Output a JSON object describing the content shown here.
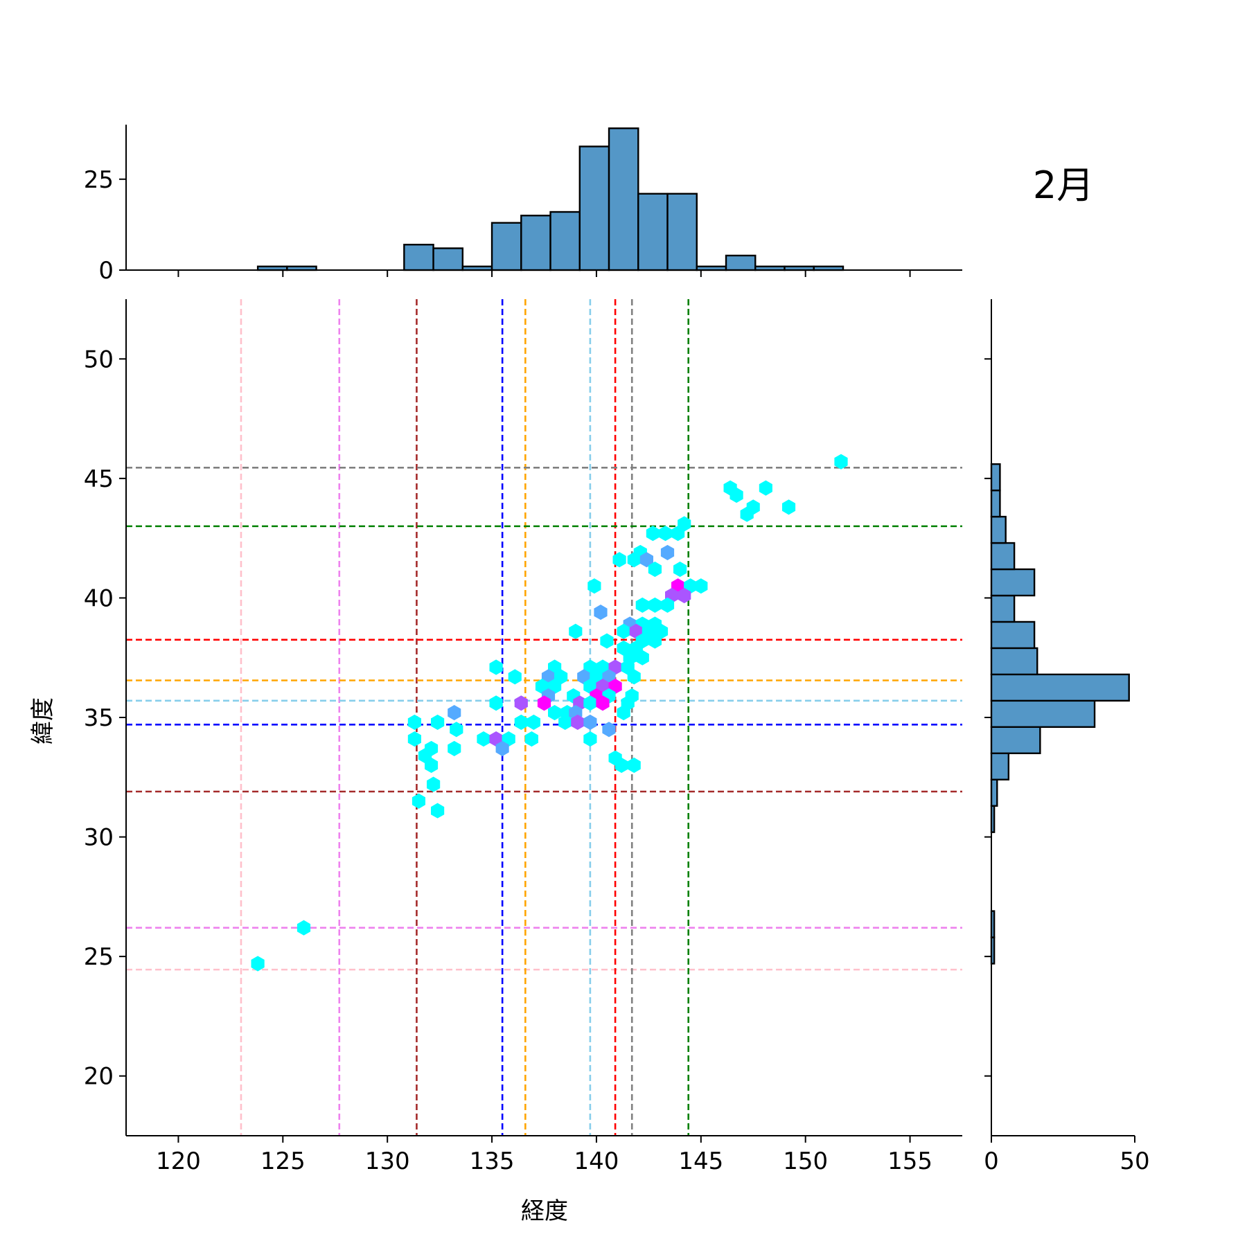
{
  "chart_data": {
    "type": "hexbin",
    "title": "2月",
    "xlabel": "経度",
    "ylabel": "緯度",
    "xlim": [
      117.5,
      157.5
    ],
    "ylim": [
      17.5,
      52.5
    ],
    "x_ticks": [
      120,
      125,
      130,
      135,
      140,
      145,
      150,
      155
    ],
    "y_ticks": [
      20,
      25,
      30,
      35,
      40,
      45,
      50
    ],
    "grid": false,
    "reference_lines": [
      {
        "color": "#ffc0cb",
        "x": 123.0,
        "y": 24.45
      },
      {
        "color": "#ee82ee",
        "x": 127.7,
        "y": 26.2
      },
      {
        "color": "#a52a2a",
        "x": 131.4,
        "y": 31.9
      },
      {
        "color": "#0000ff",
        "x": 135.5,
        "y": 34.7
      },
      {
        "color": "#ffa500",
        "x": 136.6,
        "y": 36.55
      },
      {
        "color": "#87ceeb",
        "x": 139.7,
        "y": 35.7
      },
      {
        "color": "#ff0000",
        "x": 140.9,
        "y": 38.25
      },
      {
        "color": "#808080",
        "x": 141.7,
        "y": 45.45
      },
      {
        "color": "#008000",
        "x": 144.4,
        "y": 43.0
      }
    ],
    "hex_points": [
      {
        "x": 151.7,
        "y": 45.7,
        "c": 1
      },
      {
        "x": 146.4,
        "y": 44.6,
        "c": 1
      },
      {
        "x": 146.7,
        "y": 44.3,
        "c": 1
      },
      {
        "x": 148.1,
        "y": 44.6,
        "c": 1
      },
      {
        "x": 147.5,
        "y": 43.8,
        "c": 1
      },
      {
        "x": 147.2,
        "y": 43.5,
        "c": 1
      },
      {
        "x": 149.2,
        "y": 43.8,
        "c": 1
      },
      {
        "x": 142.7,
        "y": 42.7,
        "c": 1
      },
      {
        "x": 143.3,
        "y": 42.7,
        "c": 1
      },
      {
        "x": 143.9,
        "y": 42.7,
        "c": 1
      },
      {
        "x": 144.2,
        "y": 43.1,
        "c": 1
      },
      {
        "x": 142.1,
        "y": 41.9,
        "c": 1
      },
      {
        "x": 143.4,
        "y": 41.9,
        "c": 2
      },
      {
        "x": 141.8,
        "y": 41.6,
        "c": 1
      },
      {
        "x": 141.1,
        "y": 41.6,
        "c": 1
      },
      {
        "x": 142.4,
        "y": 41.6,
        "c": 2
      },
      {
        "x": 142.8,
        "y": 41.2,
        "c": 1
      },
      {
        "x": 144.0,
        "y": 41.2,
        "c": 1
      },
      {
        "x": 139.9,
        "y": 40.5,
        "c": 1
      },
      {
        "x": 143.9,
        "y": 40.5,
        "c": 4
      },
      {
        "x": 144.5,
        "y": 40.5,
        "c": 1
      },
      {
        "x": 145.0,
        "y": 40.5,
        "c": 1
      },
      {
        "x": 143.6,
        "y": 40.1,
        "c": 3
      },
      {
        "x": 144.2,
        "y": 40.1,
        "c": 3
      },
      {
        "x": 142.2,
        "y": 39.7,
        "c": 1
      },
      {
        "x": 142.8,
        "y": 39.7,
        "c": 1
      },
      {
        "x": 143.4,
        "y": 39.7,
        "c": 1
      },
      {
        "x": 140.2,
        "y": 39.4,
        "c": 2
      },
      {
        "x": 141.6,
        "y": 38.9,
        "c": 2
      },
      {
        "x": 142.2,
        "y": 38.9,
        "c": 1
      },
      {
        "x": 142.8,
        "y": 38.9,
        "c": 1
      },
      {
        "x": 139.0,
        "y": 38.6,
        "c": 1
      },
      {
        "x": 141.3,
        "y": 38.6,
        "c": 1
      },
      {
        "x": 141.9,
        "y": 38.6,
        "c": 3
      },
      {
        "x": 142.5,
        "y": 38.6,
        "c": 1
      },
      {
        "x": 143.1,
        "y": 38.6,
        "c": 1
      },
      {
        "x": 140.5,
        "y": 38.2,
        "c": 1
      },
      {
        "x": 142.2,
        "y": 38.2,
        "c": 1
      },
      {
        "x": 142.8,
        "y": 38.2,
        "c": 1
      },
      {
        "x": 141.3,
        "y": 37.9,
        "c": 1
      },
      {
        "x": 141.9,
        "y": 37.9,
        "c": 1
      },
      {
        "x": 141.6,
        "y": 37.5,
        "c": 1
      },
      {
        "x": 142.2,
        "y": 37.5,
        "c": 1
      },
      {
        "x": 135.2,
        "y": 37.1,
        "c": 1
      },
      {
        "x": 138.0,
        "y": 37.1,
        "c": 1
      },
      {
        "x": 139.7,
        "y": 37.1,
        "c": 1
      },
      {
        "x": 140.3,
        "y": 37.1,
        "c": 1
      },
      {
        "x": 140.9,
        "y": 37.1,
        "c": 3
      },
      {
        "x": 141.5,
        "y": 37.1,
        "c": 1
      },
      {
        "x": 136.1,
        "y": 36.7,
        "c": 1
      },
      {
        "x": 137.7,
        "y": 36.7,
        "c": 2
      },
      {
        "x": 138.3,
        "y": 36.7,
        "c": 1
      },
      {
        "x": 139.4,
        "y": 36.7,
        "c": 2
      },
      {
        "x": 140.0,
        "y": 36.7,
        "c": 1
      },
      {
        "x": 140.6,
        "y": 36.7,
        "c": 2
      },
      {
        "x": 141.8,
        "y": 36.7,
        "c": 1
      },
      {
        "x": 137.4,
        "y": 36.3,
        "c": 1
      },
      {
        "x": 138.0,
        "y": 36.3,
        "c": 1
      },
      {
        "x": 139.7,
        "y": 36.3,
        "c": 1
      },
      {
        "x": 140.3,
        "y": 36.3,
        "c": 3
      },
      {
        "x": 140.9,
        "y": 36.3,
        "c": 4
      },
      {
        "x": 137.7,
        "y": 35.9,
        "c": 2
      },
      {
        "x": 138.9,
        "y": 35.9,
        "c": 1
      },
      {
        "x": 140.0,
        "y": 35.9,
        "c": 4
      },
      {
        "x": 140.6,
        "y": 35.9,
        "c": 1
      },
      {
        "x": 141.7,
        "y": 35.9,
        "c": 1
      },
      {
        "x": 135.2,
        "y": 35.6,
        "c": 1
      },
      {
        "x": 137.5,
        "y": 35.6,
        "c": 4
      },
      {
        "x": 139.2,
        "y": 35.6,
        "c": 3
      },
      {
        "x": 139.7,
        "y": 35.6,
        "c": 1
      },
      {
        "x": 140.3,
        "y": 35.6,
        "c": 4
      },
      {
        "x": 141.5,
        "y": 35.6,
        "c": 1
      },
      {
        "x": 136.4,
        "y": 35.6,
        "c": 3
      },
      {
        "x": 133.2,
        "y": 35.2,
        "c": 2
      },
      {
        "x": 138.0,
        "y": 35.2,
        "c": 1
      },
      {
        "x": 138.6,
        "y": 35.2,
        "c": 1
      },
      {
        "x": 139.0,
        "y": 35.2,
        "c": 2
      },
      {
        "x": 141.3,
        "y": 35.2,
        "c": 1
      },
      {
        "x": 131.3,
        "y": 34.8,
        "c": 1
      },
      {
        "x": 132.4,
        "y": 34.8,
        "c": 1
      },
      {
        "x": 136.4,
        "y": 34.8,
        "c": 1
      },
      {
        "x": 137.0,
        "y": 34.8,
        "c": 1
      },
      {
        "x": 138.5,
        "y": 34.8,
        "c": 1
      },
      {
        "x": 139.1,
        "y": 34.8,
        "c": 3
      },
      {
        "x": 139.7,
        "y": 34.8,
        "c": 2
      },
      {
        "x": 133.3,
        "y": 34.5,
        "c": 1
      },
      {
        "x": 140.6,
        "y": 34.5,
        "c": 2
      },
      {
        "x": 131.3,
        "y": 34.1,
        "c": 1
      },
      {
        "x": 134.6,
        "y": 34.1,
        "c": 1
      },
      {
        "x": 135.2,
        "y": 34.1,
        "c": 3
      },
      {
        "x": 135.8,
        "y": 34.1,
        "c": 1
      },
      {
        "x": 136.9,
        "y": 34.1,
        "c": 1
      },
      {
        "x": 139.7,
        "y": 34.1,
        "c": 1
      },
      {
        "x": 132.1,
        "y": 33.7,
        "c": 1
      },
      {
        "x": 133.2,
        "y": 33.7,
        "c": 1
      },
      {
        "x": 135.5,
        "y": 33.7,
        "c": 2
      },
      {
        "x": 131.8,
        "y": 33.4,
        "c": 1
      },
      {
        "x": 140.9,
        "y": 33.3,
        "c": 1
      },
      {
        "x": 132.1,
        "y": 33.0,
        "c": 1
      },
      {
        "x": 141.2,
        "y": 33.0,
        "c": 1
      },
      {
        "x": 141.8,
        "y": 33.0,
        "c": 1
      },
      {
        "x": 132.2,
        "y": 32.2,
        "c": 1
      },
      {
        "x": 131.5,
        "y": 31.5,
        "c": 1
      },
      {
        "x": 132.4,
        "y": 31.1,
        "c": 1
      },
      {
        "x": 126.0,
        "y": 26.2,
        "c": 1
      },
      {
        "x": 123.8,
        "y": 24.7,
        "c": 1
      }
    ],
    "color_scale": {
      "low": "#00ffff",
      "high": "#ff00ff"
    },
    "marginal_x": {
      "type": "histogram",
      "ylim": [
        0,
        40
      ],
      "y_ticks": [
        0,
        25
      ],
      "bin_edges": [
        123.8,
        125.2,
        126.6,
        128.0,
        129.4,
        130.8,
        132.2,
        133.6,
        135.0,
        136.4,
        137.8,
        139.2,
        140.6,
        142.0,
        143.4,
        144.8,
        146.2,
        147.6,
        149.0,
        150.4,
        151.8
      ],
      "counts": [
        1,
        1,
        0,
        0,
        0,
        7,
        6,
        1,
        13,
        15,
        16,
        34,
        39,
        21,
        21,
        1,
        4,
        1,
        1,
        1
      ],
      "fill": "#5497c7"
    },
    "marginal_y": {
      "type": "histogram",
      "xlim": [
        0,
        50
      ],
      "x_ticks": [
        0,
        50
      ],
      "bin_edges": [
        24.7,
        25.8,
        26.9,
        28.0,
        29.1,
        30.2,
        31.3,
        32.4,
        33.5,
        34.6,
        35.7,
        36.8,
        37.9,
        39.0,
        40.1,
        41.2,
        42.3,
        43.4,
        44.5,
        45.6,
        46.7
      ],
      "counts": [
        1,
        1,
        0,
        0,
        0,
        1,
        2,
        6,
        17,
        36,
        48,
        16,
        15,
        8,
        15,
        8,
        5,
        3,
        3,
        0
      ],
      "fill": "#5497c7"
    }
  }
}
